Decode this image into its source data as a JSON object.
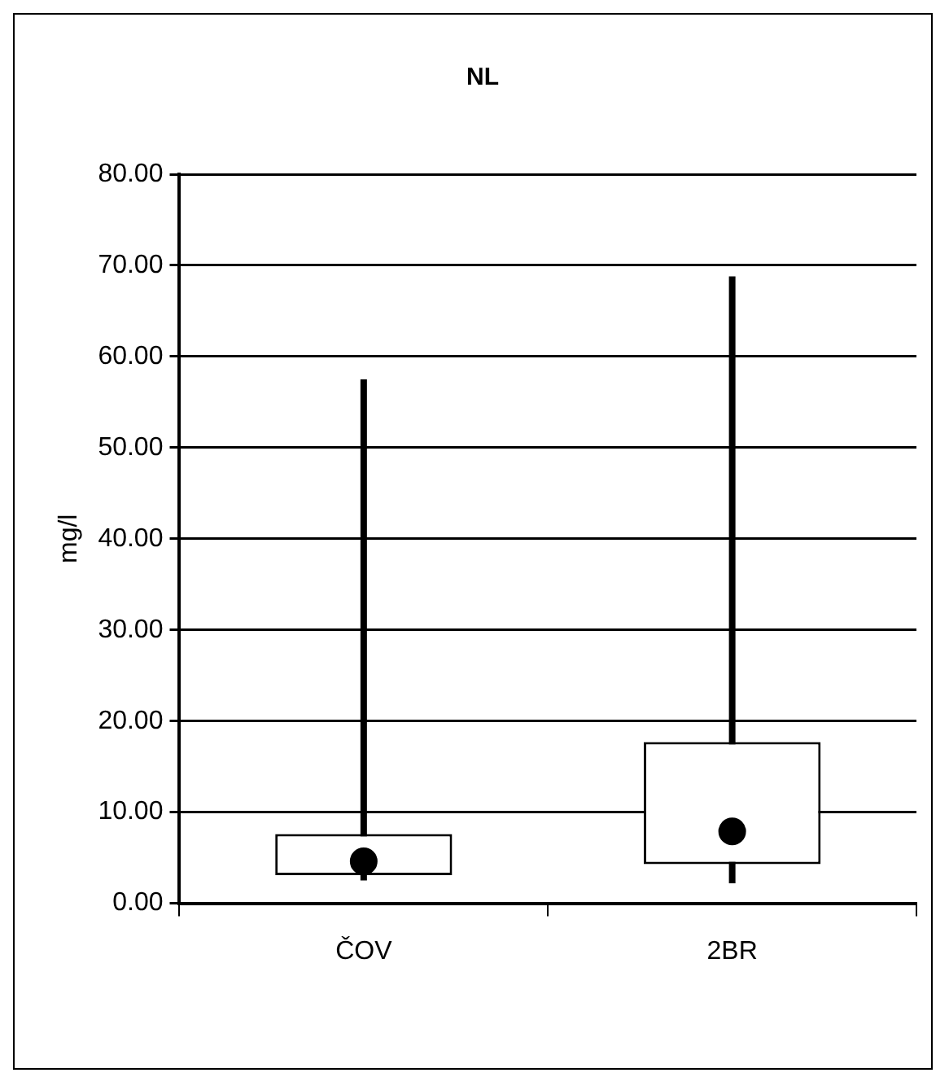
{
  "chart_data": {
    "type": "box",
    "title": "NL",
    "ylabel": "mg/l",
    "categories": [
      "ČOV",
      "2BR"
    ],
    "boxes": [
      {
        "low": 2.5,
        "q1": 3.1,
        "median": 4.6,
        "q3": 7.6,
        "high": 57.5
      },
      {
        "low": 2.2,
        "q1": 4.3,
        "median": 7.9,
        "q3": 17.7,
        "high": 68.8
      }
    ],
    "color": "#000000",
    "marker": "circle",
    "ylim": [
      0,
      80
    ],
    "yticks": [
      {
        "value": 0,
        "label": "0.00"
      },
      {
        "value": 10,
        "label": "10.00"
      },
      {
        "value": 20,
        "label": "20.00"
      },
      {
        "value": 30,
        "label": "30.00"
      },
      {
        "value": 40,
        "label": "40.00"
      },
      {
        "value": 50,
        "label": "50.00"
      },
      {
        "value": 60,
        "label": "60.00"
      },
      {
        "value": 70,
        "label": "70.00"
      },
      {
        "value": 80,
        "label": "80.00"
      }
    ],
    "grid": "y",
    "legend": false
  }
}
